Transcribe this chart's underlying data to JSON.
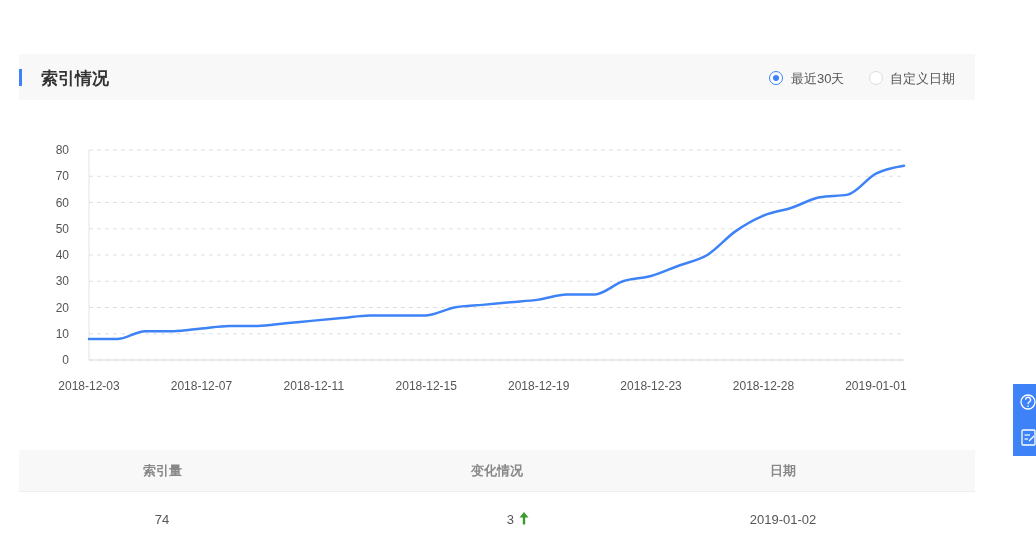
{
  "chart_data": [
    {
      "type": "line",
      "title": "索引情况",
      "annotations": [
        "最近30天",
        "自定义日期"
      ],
      "categories": [
        "2018-12-03",
        null,
        null,
        null,
        "2018-12-07",
        null,
        null,
        null,
        "2018-12-11",
        null,
        null,
        null,
        "2018-12-15",
        null,
        null,
        null,
        "2018-12-19",
        null,
        null,
        null,
        "2018-12-23",
        null,
        null,
        null,
        "2018-12-28",
        null,
        null,
        null,
        "2019-01-01",
        null
      ],
      "series": [
        {
          "color": "#3e82f7",
          "values": [
            8,
            8,
            11,
            11,
            12,
            13,
            13,
            14,
            15,
            16,
            17,
            17,
            17,
            20,
            21,
            22,
            23,
            25,
            25,
            30,
            32,
            36,
            40,
            49,
            55,
            58,
            62,
            63,
            71,
            74
          ]
        }
      ],
      "ylim": [
        0,
        80
      ],
      "yticks": [
        0,
        10,
        20,
        30,
        40,
        50,
        60,
        70,
        80
      ],
      "grid": "y"
    },
    {
      "type": "other",
      "annotations": [
        "索引量",
        "变化情况",
        "日期",
        "74",
        "3",
        "2019-01-02"
      ]
    }
  ]
}
